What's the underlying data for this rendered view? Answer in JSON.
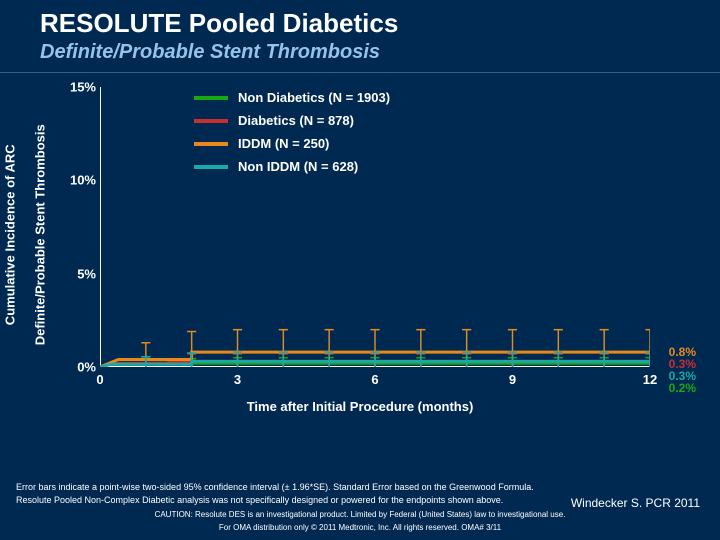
{
  "title": "RESOLUTE Pooled Diabetics",
  "subtitle": "Definite/Probable Stent Thrombosis",
  "chart": {
    "type": "line-km",
    "ylabel_line1": "Cumulative Incidence of ARC",
    "ylabel_line2": "Definite/Probable Stent Thrombosis",
    "xlabel": "Time after Initial Procedure (months)",
    "background_color": "#002952",
    "axis_color": "#ffffff",
    "axis_width": 2,
    "tick_len": 6,
    "xlim": [
      0,
      12
    ],
    "ylim": [
      0,
      15
    ],
    "xticks": [
      0,
      3,
      6,
      9,
      12
    ],
    "yticks": [
      {
        "v": 0,
        "label": "0%"
      },
      {
        "v": 5,
        "label": "5%"
      },
      {
        "v": 10,
        "label": "10%"
      },
      {
        "v": 15,
        "label": "15%"
      }
    ],
    "ci_bar_halfwidth_months": 0.1,
    "ci_tick_months": [
      1,
      2,
      3,
      4,
      5,
      6,
      7,
      8,
      9,
      10,
      11,
      12
    ],
    "series": [
      {
        "name": "Non Diabetics (N = 1903)",
        "color": "#15a915",
        "line_width": 3,
        "steps": [
          [
            0,
            0
          ],
          [
            0.2,
            0.15
          ],
          [
            1,
            0.15
          ],
          [
            1,
            0.2
          ],
          [
            12,
            0.2
          ]
        ],
        "ci_half_at_months": {
          "1": 0.25,
          "2": 0.25,
          "3": 0.3,
          "4": 0.3,
          "5": 0.3,
          "6": 0.3,
          "7": 0.3,
          "8": 0.3,
          "9": 0.3,
          "10": 0.3,
          "11": 0.3,
          "12": 0.3
        },
        "end_value": 0.2,
        "end_label": "0.2%"
      },
      {
        "name": "Diabetics (N = 878)",
        "color": "#c92f2f",
        "line_width": 3,
        "steps": [
          [
            0,
            0
          ],
          [
            0.3,
            0.2
          ],
          [
            1.5,
            0.2
          ],
          [
            1.5,
            0.3
          ],
          [
            12,
            0.3
          ]
        ],
        "ci_half_at_months": {
          "1": 0.35,
          "2": 0.4,
          "3": 0.4,
          "4": 0.4,
          "5": 0.4,
          "6": 0.4,
          "7": 0.4,
          "8": 0.4,
          "9": 0.4,
          "10": 0.4,
          "11": 0.4,
          "12": 0.4
        },
        "end_value": 0.3,
        "end_label": "0.3%"
      },
      {
        "name": "IDDM (N = 250)",
        "color": "#e88a1a",
        "line_width": 3,
        "steps": [
          [
            0,
            0
          ],
          [
            0.4,
            0.4
          ],
          [
            2,
            0.4
          ],
          [
            2,
            0.8
          ],
          [
            12,
            0.8
          ]
        ],
        "ci_half_at_months": {
          "1": 0.9,
          "2": 1.1,
          "3": 1.2,
          "4": 1.2,
          "5": 1.2,
          "6": 1.2,
          "7": 1.2,
          "8": 1.2,
          "9": 1.2,
          "10": 1.2,
          "11": 1.2,
          "12": 1.2
        },
        "end_value": 0.8,
        "end_label": "0.8%"
      },
      {
        "name": "Non IDDM (N = 628)",
        "color": "#1aa8a8",
        "line_width": 3,
        "steps": [
          [
            0,
            0
          ],
          [
            0.25,
            0.15
          ],
          [
            2,
            0.15
          ],
          [
            2,
            0.3
          ],
          [
            12,
            0.3
          ]
        ],
        "ci_half_at_months": {
          "1": 0.4,
          "2": 0.45,
          "3": 0.5,
          "4": 0.5,
          "5": 0.5,
          "6": 0.5,
          "7": 0.5,
          "8": 0.5,
          "9": 0.5,
          "10": 0.5,
          "11": 0.5,
          "12": 0.5
        },
        "end_value": 0.3,
        "end_label": "0.3%"
      }
    ]
  },
  "footer": {
    "note1": "Error bars indicate a point-wise two-sided 95% confidence interval (± 1.96*SE). Standard Error based on the Greenwood Formula.",
    "note2": "Resolute Pooled Non-Complex Diabetic analysis was not specifically designed or powered for the endpoints shown above.",
    "credit": "Windecker S. PCR 2011",
    "caution1": "CAUTION: Resolute DES is an investigational product. Limited by Federal (United States) law to investigational use.",
    "caution2": "For OMA distribution only © 2011 Medtronic, Inc. All rights reserved. OMA# 3/11"
  }
}
